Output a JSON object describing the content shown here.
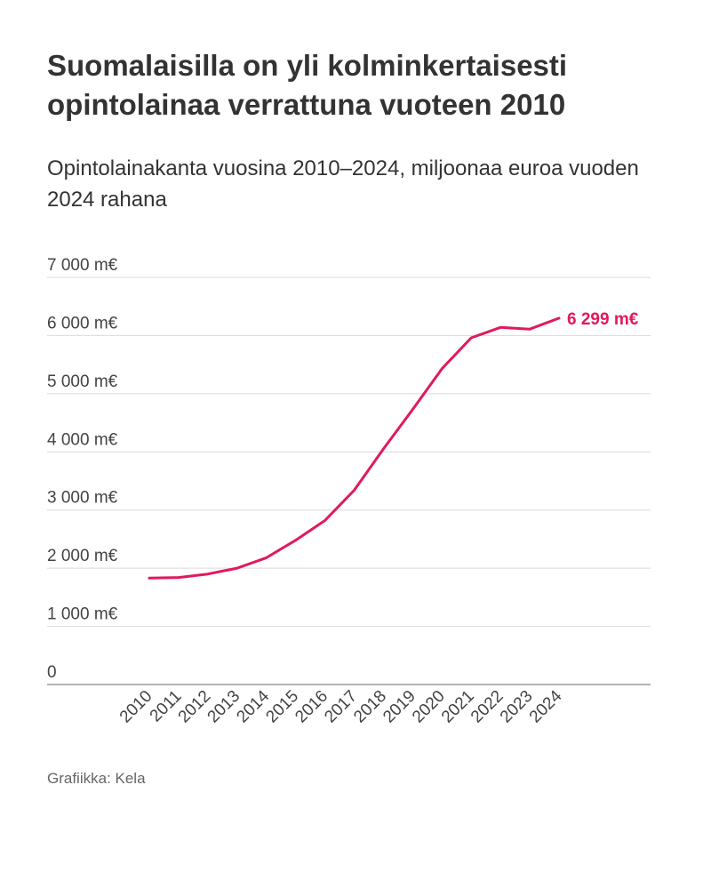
{
  "title": "Suomalaisilla on yli kolminkertaisesti opintolainaa verrattuna vuoteen 2010",
  "subtitle": "Opintolainakanta vuosina 2010–2024, miljoonaa euroa vuoden 2024 rahana",
  "source": "Grafiikka: Kela",
  "colors": {
    "line": "#e0195f",
    "grid": "#d9d9d9",
    "axis": "#888888",
    "text": "#333333"
  },
  "chart_data": {
    "type": "line",
    "title": "Suomalaisilla on yli kolminkertaisesti opintolainaa verrattuna vuoteen 2010",
    "subtitle": "Opintolainakanta vuosina 2010–2024, miljoonaa euroa vuoden 2024 rahana",
    "xlabel": "",
    "ylabel": "",
    "ylim": [
      0,
      7000
    ],
    "grid": true,
    "categories": [
      "2010",
      "2011",
      "2012",
      "2013",
      "2014",
      "2015",
      "2016",
      "2017",
      "2018",
      "2019",
      "2020",
      "2021",
      "2022",
      "2023",
      "2024"
    ],
    "y_ticks": [
      0,
      1000,
      2000,
      3000,
      4000,
      5000,
      6000,
      7000
    ],
    "y_tick_labels": [
      "0",
      "1 000 m€",
      "2 000 m€",
      "3 000 m€",
      "4 000 m€",
      "5 000 m€",
      "6 000 m€",
      "7 000 m€"
    ],
    "series": [
      {
        "name": "Opintolainakanta",
        "values": [
          1830,
          1840,
          1900,
          2000,
          2180,
          2480,
          2820,
          3340,
          4050,
          4730,
          5430,
          5960,
          6140,
          6110,
          6299
        ],
        "end_label": "6 299 m€"
      }
    ]
  }
}
